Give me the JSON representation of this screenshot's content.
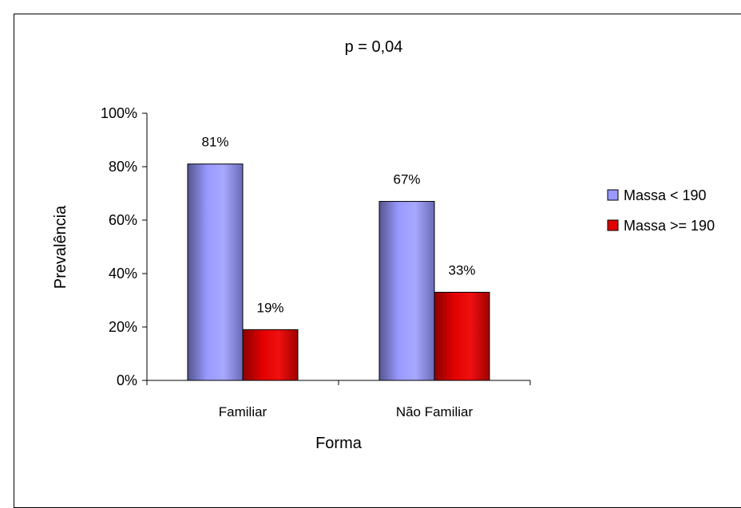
{
  "chart_data": {
    "type": "bar",
    "title": "p = 0,04",
    "xlabel": "Forma",
    "ylabel": "Prevalência",
    "categories": [
      "Familiar",
      "Não Familiar"
    ],
    "series": [
      {
        "name": "Massa < 190",
        "values": [
          81,
          67
        ],
        "labels": [
          "81%",
          "67%"
        ],
        "color": "#9999FF"
      },
      {
        "name": "Massa >= 190",
        "values": [
          19,
          33
        ],
        "labels": [
          "19%",
          "33%"
        ],
        "color": "#E00000"
      }
    ],
    "ylim": [
      0,
      100
    ],
    "yticks": [
      0,
      20,
      40,
      60,
      80,
      100
    ],
    "ytick_labels": [
      "0%",
      "20%",
      "40%",
      "60%",
      "80%",
      "100%"
    ],
    "grid": false,
    "legend_position": "right"
  }
}
